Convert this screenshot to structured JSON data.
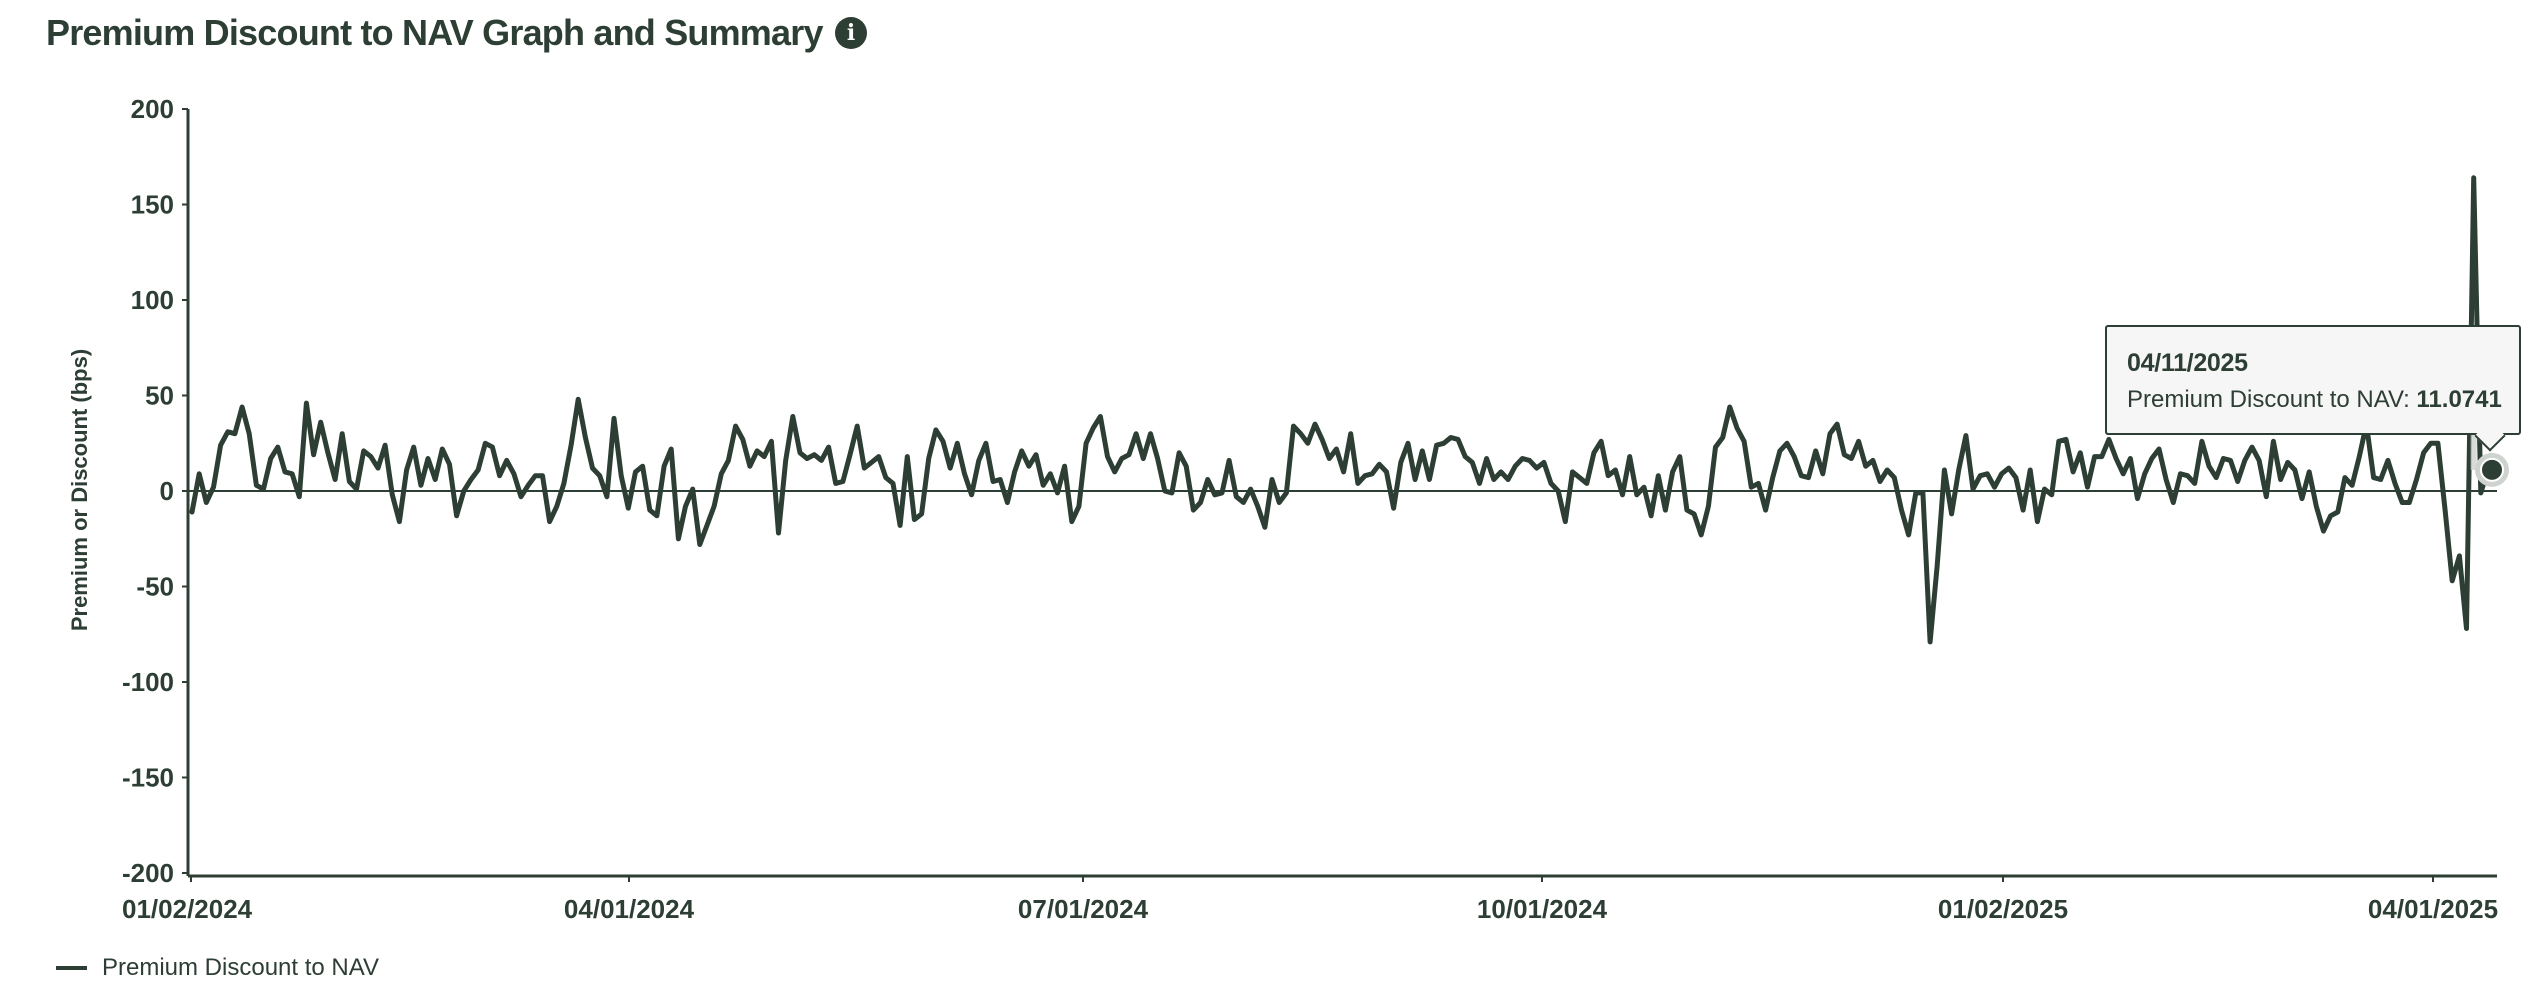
{
  "header": {
    "title": "Premium Discount to NAV Graph and Summary",
    "info_icon": "info-icon"
  },
  "colors": {
    "line": "#2d3e34",
    "text": "#2d3e34",
    "tooltip_bg": "#f6f6f6",
    "marker_halo": "#cfd3d0"
  },
  "tooltip": {
    "date": "04/11/2025",
    "label": "Premium Discount to NAV: ",
    "value": "11.0741"
  },
  "legend": {
    "items": [
      {
        "label": "Premium Discount to NAV"
      }
    ]
  },
  "chart_data": {
    "type": "line",
    "title": "Premium Discount to NAV Graph and Summary",
    "xlabel": "",
    "ylabel": "Premium or Discount (bps)",
    "ylim": [
      -200,
      200
    ],
    "yticks": [
      200,
      150,
      100,
      50,
      0,
      -50,
      -100,
      -150,
      -200
    ],
    "xticks": [
      "01/02/2024",
      "04/01/2024",
      "07/01/2024",
      "10/01/2024",
      "01/02/2025",
      "04/01/2025"
    ],
    "x_range": [
      "01/02/2024",
      "04/11/2025"
    ],
    "grid": false,
    "zero_line": true,
    "legend_position": "bottom-left",
    "series": [
      {
        "name": "Premium Discount to NAV",
        "values": [
          -11,
          9,
          -6,
          2,
          24,
          31,
          30,
          44,
          30,
          3,
          1,
          17,
          23,
          10,
          9,
          -3,
          46,
          19,
          36,
          20,
          6,
          30,
          5,
          1,
          21,
          18,
          12,
          24,
          -2,
          -16,
          11,
          23,
          3,
          17,
          6,
          22,
          14,
          -13,
          0,
          6,
          11,
          25,
          23,
          8,
          16,
          9,
          -3,
          3,
          8,
          8,
          -16,
          -8,
          4,
          24,
          48,
          28,
          12,
          8,
          -3,
          38,
          8,
          -9,
          10,
          13,
          -10,
          -13,
          13,
          22,
          -25,
          -8,
          1,
          -28,
          -18,
          -8,
          9,
          16,
          34,
          27,
          13,
          21,
          18,
          26,
          -22,
          16,
          39,
          20,
          17,
          19,
          16,
          23,
          4,
          5,
          19,
          34,
          12,
          15,
          18,
          7,
          4,
          -18,
          18,
          -15,
          -12,
          17,
          32,
          26,
          12,
          25,
          9,
          -2,
          16,
          25,
          5,
          6,
          -6,
          10,
          21,
          13,
          19,
          3,
          9,
          -1,
          13,
          -16,
          -8,
          25,
          33,
          39,
          18,
          10,
          17,
          19,
          30,
          17,
          30,
          17,
          0,
          -1,
          20,
          13,
          -10,
          -6,
          6,
          -2,
          -1,
          16,
          -3,
          -6,
          1,
          -8,
          -19,
          6,
          -6,
          -1,
          34,
          30,
          25,
          35,
          27,
          17,
          22,
          10,
          30,
          4,
          8,
          9,
          14,
          10,
          -9,
          15,
          25,
          6,
          21,
          6,
          24,
          25,
          28,
          27,
          18,
          15,
          4,
          17,
          6,
          10,
          6,
          13,
          17,
          16,
          12,
          15,
          4,
          0,
          -16,
          10,
          7,
          4,
          20,
          26,
          8,
          11,
          -2,
          18,
          -2,
          2,
          -13,
          8,
          -10,
          10,
          18,
          -10,
          -12,
          -23,
          -8,
          23,
          28,
          44,
          33,
          26,
          2,
          4,
          -10,
          7,
          21,
          25,
          18,
          8,
          7,
          21,
          9,
          30,
          35,
          19,
          17,
          26,
          13,
          16,
          5,
          11,
          7,
          -10,
          -23,
          -1,
          -1,
          -79,
          -39,
          11,
          -12,
          11,
          29,
          1,
          8,
          9,
          2,
          9,
          12,
          7,
          -10,
          11,
          -16,
          1,
          -2,
          26,
          27,
          10,
          20,
          2,
          18,
          18,
          27,
          17,
          9,
          17,
          -4,
          9,
          17,
          22,
          6,
          -6,
          9,
          8,
          4,
          26,
          13,
          7,
          17,
          16,
          5,
          16,
          23,
          16,
          -3,
          26,
          6,
          15,
          11,
          -4,
          10,
          -8,
          -21,
          -13,
          -11,
          7,
          3,
          18,
          35,
          7,
          6,
          16,
          4,
          -6,
          -6,
          6,
          20,
          25,
          25,
          -10,
          -47,
          -34,
          -72,
          164,
          -1,
          11.0741
        ]
      }
    ],
    "highlighted_point": {
      "date": "04/11/2025",
      "value": 11.0741
    }
  }
}
